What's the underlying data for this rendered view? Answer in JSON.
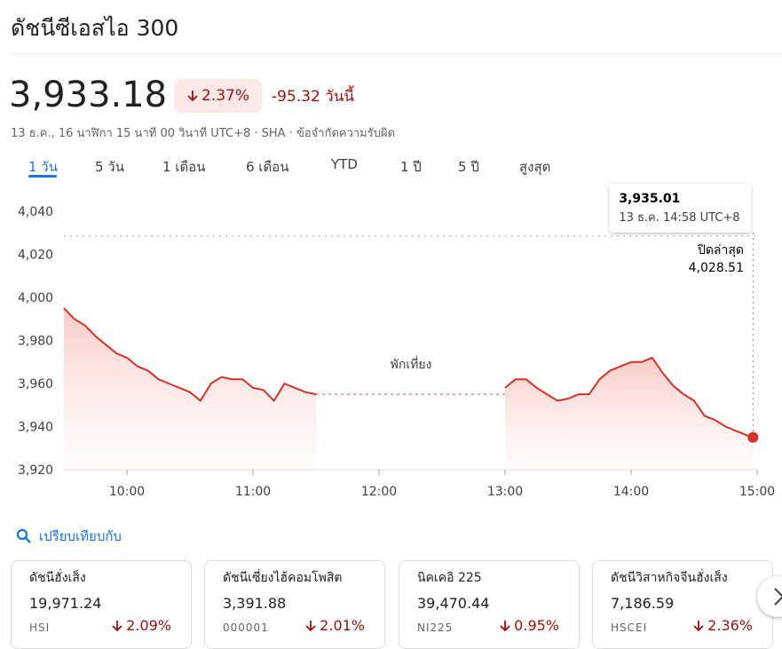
{
  "header": {
    "title": "ดัชนีซีเอสไอ 300"
  },
  "quote": {
    "price": "3,933.18",
    "change_percent": "2.37%",
    "change": "-95.32 วันนี้",
    "subtitle": "13 ธ.ค., 16 นาฬิกา 15 นาที 00 วินาที UTC+8 · SHA · ข้อจำกัดความรับผิด"
  },
  "tabs": [
    "1 วัน",
    "5 วัน",
    "1 เดือน",
    "6 เดือน",
    "YTD",
    "1 ปี",
    "5 ปี",
    "สูงสุด"
  ],
  "chart_data": {
    "type": "line",
    "color": "#d93025",
    "x": [
      9.5,
      9.583,
      9.667,
      9.75,
      9.833,
      9.917,
      10.0,
      10.083,
      10.167,
      10.25,
      10.333,
      10.417,
      10.5,
      10.583,
      10.667,
      10.75,
      10.833,
      10.917,
      11.0,
      11.083,
      11.167,
      11.25,
      11.333,
      11.417,
      11.5,
      12.25,
      13.0,
      13.083,
      13.167,
      13.25,
      13.333,
      13.417,
      13.5,
      13.583,
      13.667,
      13.75,
      13.833,
      13.917,
      14.0,
      14.083,
      14.167,
      14.25,
      14.333,
      14.417,
      14.5,
      14.583,
      14.667,
      14.75,
      14.833,
      14.917,
      14.967
    ],
    "values": [
      3995,
      3990,
      3987,
      3982,
      3978,
      3974,
      3972,
      3968,
      3966,
      3962,
      3960,
      3958,
      3956,
      3952,
      3960,
      3963,
      3962,
      3962,
      3958,
      3957,
      3952,
      3960,
      3958,
      3956,
      3955,
      null,
      3958,
      3962,
      3962,
      3958,
      3955,
      3952,
      3953,
      3955,
      3955,
      3962,
      3966,
      3968,
      3970,
      3970,
      3972,
      3965,
      3959,
      3955,
      3952,
      3945,
      3943,
      3940,
      3938,
      3936,
      3935.01
    ],
    "xlim": [
      9.5,
      15
    ],
    "ylim": [
      3920,
      4040
    ],
    "xticks": [
      {
        "value": 10,
        "label": "10:00"
      },
      {
        "value": 11,
        "label": "11:00"
      },
      {
        "value": 12,
        "label": "12:00"
      },
      {
        "value": 13,
        "label": "13:00"
      },
      {
        "value": 14,
        "label": "14:00"
      },
      {
        "value": 15,
        "label": "15:00"
      }
    ],
    "yticks": [
      {
        "value": 3920,
        "label": "3,920"
      },
      {
        "value": 3940,
        "label": "3,940"
      },
      {
        "value": 3960,
        "label": "3,960"
      },
      {
        "value": 3980,
        "label": "3,980"
      },
      {
        "value": 4000,
        "label": "4,000"
      },
      {
        "value": 4020,
        "label": "4,020"
      },
      {
        "value": 4040,
        "label": "4,040"
      }
    ],
    "grid": false,
    "reference_line": {
      "name": "ปิดล่าสุด",
      "value": 4028.51,
      "label": "4,028.51"
    },
    "annotation": {
      "text": "พักเที่ยง"
    },
    "tooltip": {
      "value": 3935.01,
      "value_label": "3,935.01",
      "x": 14.967,
      "label": "13 ธ.ค. 14:58 UTC+8"
    }
  },
  "compare": {
    "label": "เปรียบเทียบกับ"
  },
  "cards": [
    {
      "name": "ดัชนีฮั่งเส็ง",
      "value": "19,971.24",
      "symbol": "HSI",
      "change": "2.09%"
    },
    {
      "name": "ดัชนีเซี่ยงไฮ้คอมโพสิต",
      "value": "3,391.88",
      "symbol": "000001",
      "change": "2.01%"
    },
    {
      "name": "นิคเคอิ 225",
      "value": "39,470.44",
      "symbol": "NI225",
      "change": "0.95%"
    },
    {
      "name": "ดัชนีวิสาหกิจจีนฮั่งเส็ง",
      "value": "7,186.59",
      "symbol": "HSCEI",
      "change": "2.36%"
    }
  ]
}
